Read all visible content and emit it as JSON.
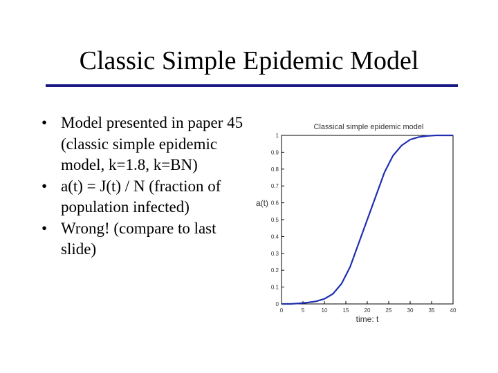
{
  "slide": {
    "title": "Classic Simple Epidemic Model",
    "bullets": [
      "Model presented in paper 45 (classic simple epidemic model, k=1.8, k=BN)",
      "a(t) = J(t) / N (fraction of population infected)",
      "Wrong! (compare to last slide)"
    ],
    "bullet_glyph": "•"
  },
  "colors": {
    "rule": "#1b1b86",
    "curve": "#1f2fb0"
  },
  "chart_data": {
    "type": "line",
    "title": "Classical simple epidemic model",
    "xlabel": "time: t",
    "ylabel": "a(t)",
    "xlim": [
      0,
      40
    ],
    "ylim": [
      0,
      1
    ],
    "xticks": [
      0,
      5,
      10,
      15,
      20,
      25,
      30,
      35,
      40
    ],
    "yticks": [
      0,
      0.1,
      0.2,
      0.3,
      0.4,
      0.5,
      0.6,
      0.7,
      0.8,
      0.9,
      1
    ],
    "grid": false,
    "series": [
      {
        "x": [
          0,
          2,
          4,
          6,
          8,
          10,
          12,
          14,
          16,
          18,
          20,
          22,
          24,
          26,
          28,
          30,
          32,
          34,
          36,
          38,
          40
        ],
        "y": [
          0,
          0,
          0.003,
          0.008,
          0.015,
          0.03,
          0.06,
          0.12,
          0.22,
          0.36,
          0.5,
          0.64,
          0.78,
          0.88,
          0.94,
          0.975,
          0.99,
          0.997,
          1,
          1,
          1
        ]
      }
    ]
  }
}
